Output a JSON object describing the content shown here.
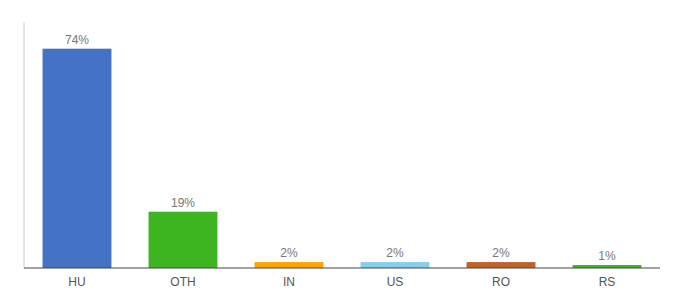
{
  "chart_data": {
    "type": "bar",
    "categories": [
      "HU",
      "OTH",
      "IN",
      "US",
      "RO",
      "RS"
    ],
    "values": [
      74,
      19,
      2,
      2,
      2,
      1
    ],
    "value_labels": [
      "74%",
      "19%",
      "2%",
      "2%",
      "2%",
      "1%"
    ],
    "colors": [
      "#4472C4",
      "#3CB521",
      "#FFA500",
      "#87CEEB",
      "#C0632A",
      "#3CB521"
    ],
    "ylim": [
      0,
      83
    ],
    "grid": false,
    "data_labels": true,
    "tick_labels": "x"
  }
}
